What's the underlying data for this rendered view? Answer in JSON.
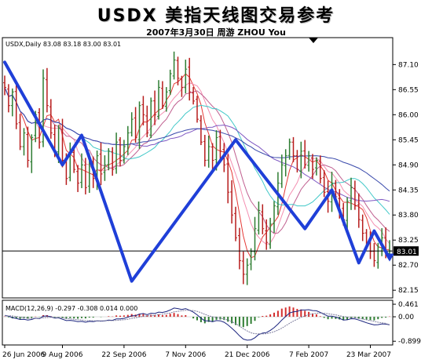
{
  "header": {
    "title": "USDX 美指天线图交易参考",
    "subtitle": "2007年3月30日 周游 ZHOU You"
  },
  "chart_data": {
    "type": "candlestick",
    "symbol_info": "USDX,Daily 83.08 83.18 83.00 83.01",
    "y_ticks": [
      "87.10",
      "86.55",
      "86.00",
      "85.45",
      "84.90",
      "84.35",
      "83.80",
      "83.25",
      "82.70",
      "82.15"
    ],
    "ylim": [
      82.05,
      87.45
    ],
    "current_price": "83.01",
    "current_price_value": 83.01,
    "x_ticks": [
      "26 Jun 2006",
      "9 Aug 2006",
      "22 Sep 2006",
      "7 Nov 2006",
      "21 Dec 2006",
      "7 Feb 2007",
      "23 Mar 2007"
    ],
    "closes": [
      86.6,
      86.2,
      86.5,
      85.8,
      85.3,
      85.6,
      85.0,
      85.5,
      86.0,
      85.4,
      86.8,
      86.2,
      85.6,
      85.2,
      85.7,
      85.0,
      84.6,
      85.2,
      84.8,
      84.5,
      84.9,
      84.4,
      85.0,
      84.6,
      85.1,
      84.7,
      84.9,
      85.2,
      84.8,
      85.4,
      85.0,
      85.3,
      85.6,
      85.9,
      85.5,
      86.2,
      86.0,
      85.6,
      86.3,
      86.0,
      86.6,
      86.2,
      86.5,
      86.9,
      87.2,
      86.8,
      86.6,
      87.0,
      86.5,
      86.3,
      85.9,
      85.4,
      85.0,
      85.3,
      85.0,
      85.5,
      85.2,
      84.9,
      84.3,
      83.8,
      83.3,
      82.8,
      82.5,
      82.7,
      83.0,
      83.5,
      83.9,
      83.5,
      83.2,
      83.6,
      84.0,
      84.5,
      84.9,
      85.1,
      85.4,
      85.1,
      84.8,
      85.2,
      84.9,
      85.1,
      84.8,
      85.0,
      84.6,
      84.3,
      84.1,
      84.5,
      84.2,
      83.9,
      83.7,
      84.1,
      84.4,
      84.0,
      83.7,
      83.4,
      83.2,
      83.0,
      82.8,
      83.1,
      83.3,
      83.0,
      83.01
    ],
    "wave_line": [
      {
        "i": 0,
        "v": 87.15
      },
      {
        "i": 15,
        "v": 84.9
      },
      {
        "i": 20,
        "v": 85.55
      },
      {
        "i": 33,
        "v": 82.35
      },
      {
        "i": 60,
        "v": 85.45
      },
      {
        "i": 78,
        "v": 83.5
      },
      {
        "i": 85,
        "v": 84.35
      },
      {
        "i": 92,
        "v": 82.75
      },
      {
        "i": 96,
        "v": 83.45
      },
      {
        "i": 100,
        "v": 82.85
      }
    ],
    "macd": {
      "label": "MACD(12,26,9) -0.297 -0.308 0.014 0.000",
      "y_ticks": [
        "0.461",
        "0.00",
        "-0.899"
      ],
      "ylim": [
        -0.95,
        0.52
      ],
      "main": [
        0.05,
        0.02,
        -0.03,
        -0.06,
        -0.1,
        -0.09,
        -0.12,
        -0.1,
        -0.05,
        -0.07,
        0.02,
        0.03,
        0.0,
        -0.05,
        -0.04,
        -0.09,
        -0.14,
        -0.13,
        -0.15,
        -0.18,
        -0.17,
        -0.2,
        -0.17,
        -0.18,
        -0.15,
        -0.16,
        -0.15,
        -0.12,
        -0.13,
        -0.08,
        -0.08,
        -0.06,
        -0.02,
        0.04,
        0.04,
        0.1,
        0.12,
        0.08,
        0.13,
        0.12,
        0.17,
        0.16,
        0.19,
        0.25,
        0.32,
        0.3,
        0.27,
        0.3,
        0.24,
        0.17,
        0.07,
        -0.05,
        -0.15,
        -0.15,
        -0.18,
        -0.14,
        -0.15,
        -0.2,
        -0.3,
        -0.42,
        -0.55,
        -0.7,
        -0.82,
        -0.86,
        -0.85,
        -0.77,
        -0.65,
        -0.6,
        -0.58,
        -0.5,
        -0.4,
        -0.27,
        -0.12,
        0.01,
        0.14,
        0.18,
        0.2,
        0.25,
        0.25,
        0.26,
        0.23,
        0.22,
        0.16,
        0.09,
        0.02,
        0.02,
        -0.01,
        -0.06,
        -0.12,
        -0.11,
        -0.07,
        -0.08,
        -0.12,
        -0.17,
        -0.22,
        -0.26,
        -0.3,
        -0.29,
        -0.26,
        -0.27,
        -0.297
      ],
      "signal": [
        0.04,
        0.04,
        0.03,
        0.01,
        -0.02,
        -0.03,
        -0.05,
        -0.06,
        -0.06,
        -0.06,
        -0.04,
        -0.03,
        -0.02,
        -0.03,
        -0.03,
        -0.04,
        -0.06,
        -0.08,
        -0.09,
        -0.11,
        -0.12,
        -0.14,
        -0.14,
        -0.15,
        -0.15,
        -0.15,
        -0.15,
        -0.14,
        -0.14,
        -0.13,
        -0.12,
        -0.11,
        -0.09,
        -0.06,
        -0.04,
        -0.01,
        0.02,
        0.03,
        0.05,
        0.06,
        0.08,
        0.1,
        0.12,
        0.14,
        0.18,
        0.2,
        0.22,
        0.24,
        0.24,
        0.23,
        0.2,
        0.15,
        0.09,
        0.04,
        0.0,
        -0.03,
        -0.05,
        -0.08,
        -0.12,
        -0.18,
        -0.25,
        -0.34,
        -0.44,
        -0.52,
        -0.59,
        -0.62,
        -0.63,
        -0.63,
        -0.62,
        -0.59,
        -0.55,
        -0.49,
        -0.42,
        -0.33,
        -0.24,
        -0.16,
        -0.09,
        -0.02,
        0.03,
        0.08,
        0.11,
        0.13,
        0.14,
        0.13,
        0.11,
        0.09,
        0.07,
        0.04,
        0.01,
        -0.01,
        -0.02,
        -0.04,
        -0.05,
        -0.08,
        -0.11,
        -0.14,
        -0.17,
        -0.2,
        -0.22,
        -0.24,
        -0.308
      ]
    }
  },
  "colors": {
    "up_bar": "#2e7d32",
    "down_bar": "#b71c1c",
    "wave": "#1f3fd8",
    "ma": [
      "#e53935",
      "#f48fb1",
      "#c06090",
      "#40c8c8",
      "#7e57c2",
      "#3949ab"
    ],
    "macd_pos": "#d32f2f",
    "macd_neg": "#2e7d32",
    "macd_main": "#1a237e",
    "macd_signal": "#7d7d9e"
  },
  "icons": {
    "marker": "triangle-down-icon"
  }
}
